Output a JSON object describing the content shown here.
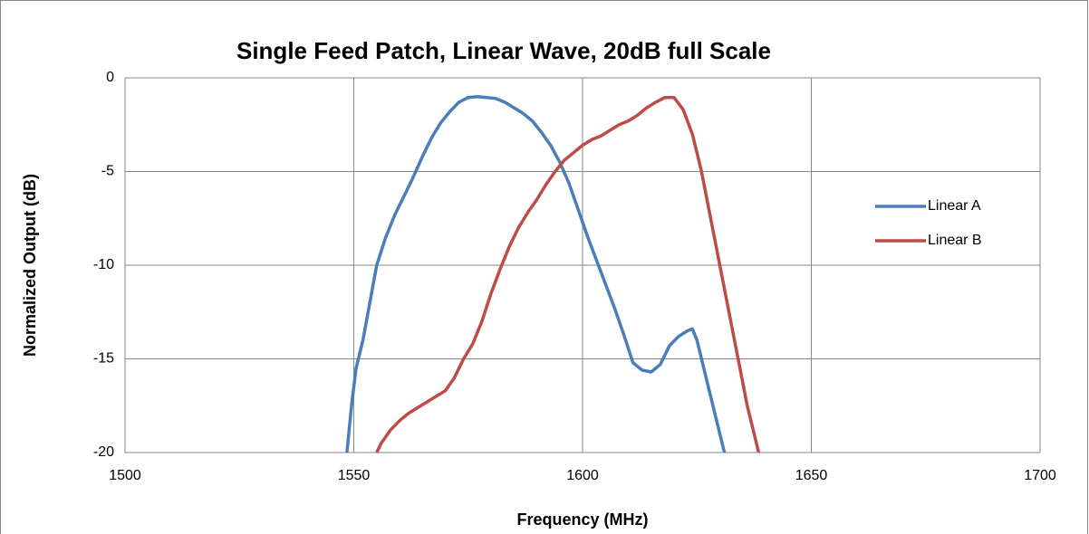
{
  "chart_data": {
    "type": "line",
    "title": "Single Feed Patch, Linear Wave, 20dB full Scale",
    "x_label": "Frequency (MHz)",
    "y_label": "Normalized Output (dB)",
    "xlim": [
      1500,
      1700
    ],
    "xticks": [
      1500,
      1550,
      1600,
      1650,
      1700
    ],
    "ylim": [
      -20,
      0
    ],
    "yticks": [
      0,
      -5,
      -10,
      -15,
      -20
    ],
    "grid": true,
    "legend": "right",
    "series": [
      {
        "name": "Linear A",
        "color": "#4a7ebb",
        "x": [
          1548.5,
          1549.5,
          1550.5,
          1552,
          1553.5,
          1555,
          1557,
          1559,
          1561,
          1563,
          1565,
          1567,
          1569,
          1571,
          1573,
          1575,
          1577,
          1579,
          1581,
          1583,
          1585,
          1587,
          1589,
          1591,
          1593,
          1595,
          1597,
          1599,
          1601,
          1603,
          1605,
          1607,
          1609,
          1611,
          1613,
          1615,
          1617,
          1619,
          1621,
          1623,
          1624,
          1625,
          1626,
          1628,
          1630,
          1631
        ],
        "values": [
          -20,
          -17.5,
          -15.5,
          -14,
          -12,
          -10,
          -8.5,
          -7.3,
          -6.3,
          -5.3,
          -4.2,
          -3.2,
          -2.4,
          -1.8,
          -1.3,
          -1.05,
          -1,
          -1.05,
          -1.1,
          -1.3,
          -1.6,
          -1.9,
          -2.3,
          -2.9,
          -3.6,
          -4.5,
          -5.6,
          -7,
          -8.4,
          -9.7,
          -11,
          -12.3,
          -13.7,
          -15.2,
          -15.6,
          -15.7,
          -15.3,
          -14.3,
          -13.8,
          -13.5,
          -13.4,
          -14,
          -15,
          -17,
          -19,
          -20
        ]
      },
      {
        "name": "Linear B",
        "color": "#be4b48",
        "x": [
          1555,
          1556,
          1558,
          1560,
          1562,
          1564,
          1566,
          1568,
          1570,
          1572,
          1574,
          1576,
          1578,
          1580,
          1582,
          1584,
          1586,
          1588,
          1590,
          1592,
          1594,
          1596,
          1598,
          1600,
          1602,
          1604,
          1606,
          1608,
          1610,
          1612,
          1614,
          1616,
          1618,
          1620,
          1622,
          1624,
          1626,
          1628,
          1630,
          1632,
          1634,
          1636,
          1638,
          1638.5
        ],
        "values": [
          -20,
          -19.5,
          -18.8,
          -18.3,
          -17.9,
          -17.6,
          -17.3,
          -17,
          -16.7,
          -16,
          -15,
          -14.2,
          -13,
          -11.5,
          -10.2,
          -9,
          -8,
          -7.2,
          -6.5,
          -5.7,
          -5,
          -4.4,
          -4,
          -3.6,
          -3.3,
          -3.1,
          -2.8,
          -2.5,
          -2.3,
          -2,
          -1.6,
          -1.3,
          -1.05,
          -1.05,
          -1.7,
          -3,
          -5,
          -7.5,
          -10,
          -12.5,
          -15,
          -17.5,
          -19.5,
          -20
        ]
      }
    ]
  }
}
